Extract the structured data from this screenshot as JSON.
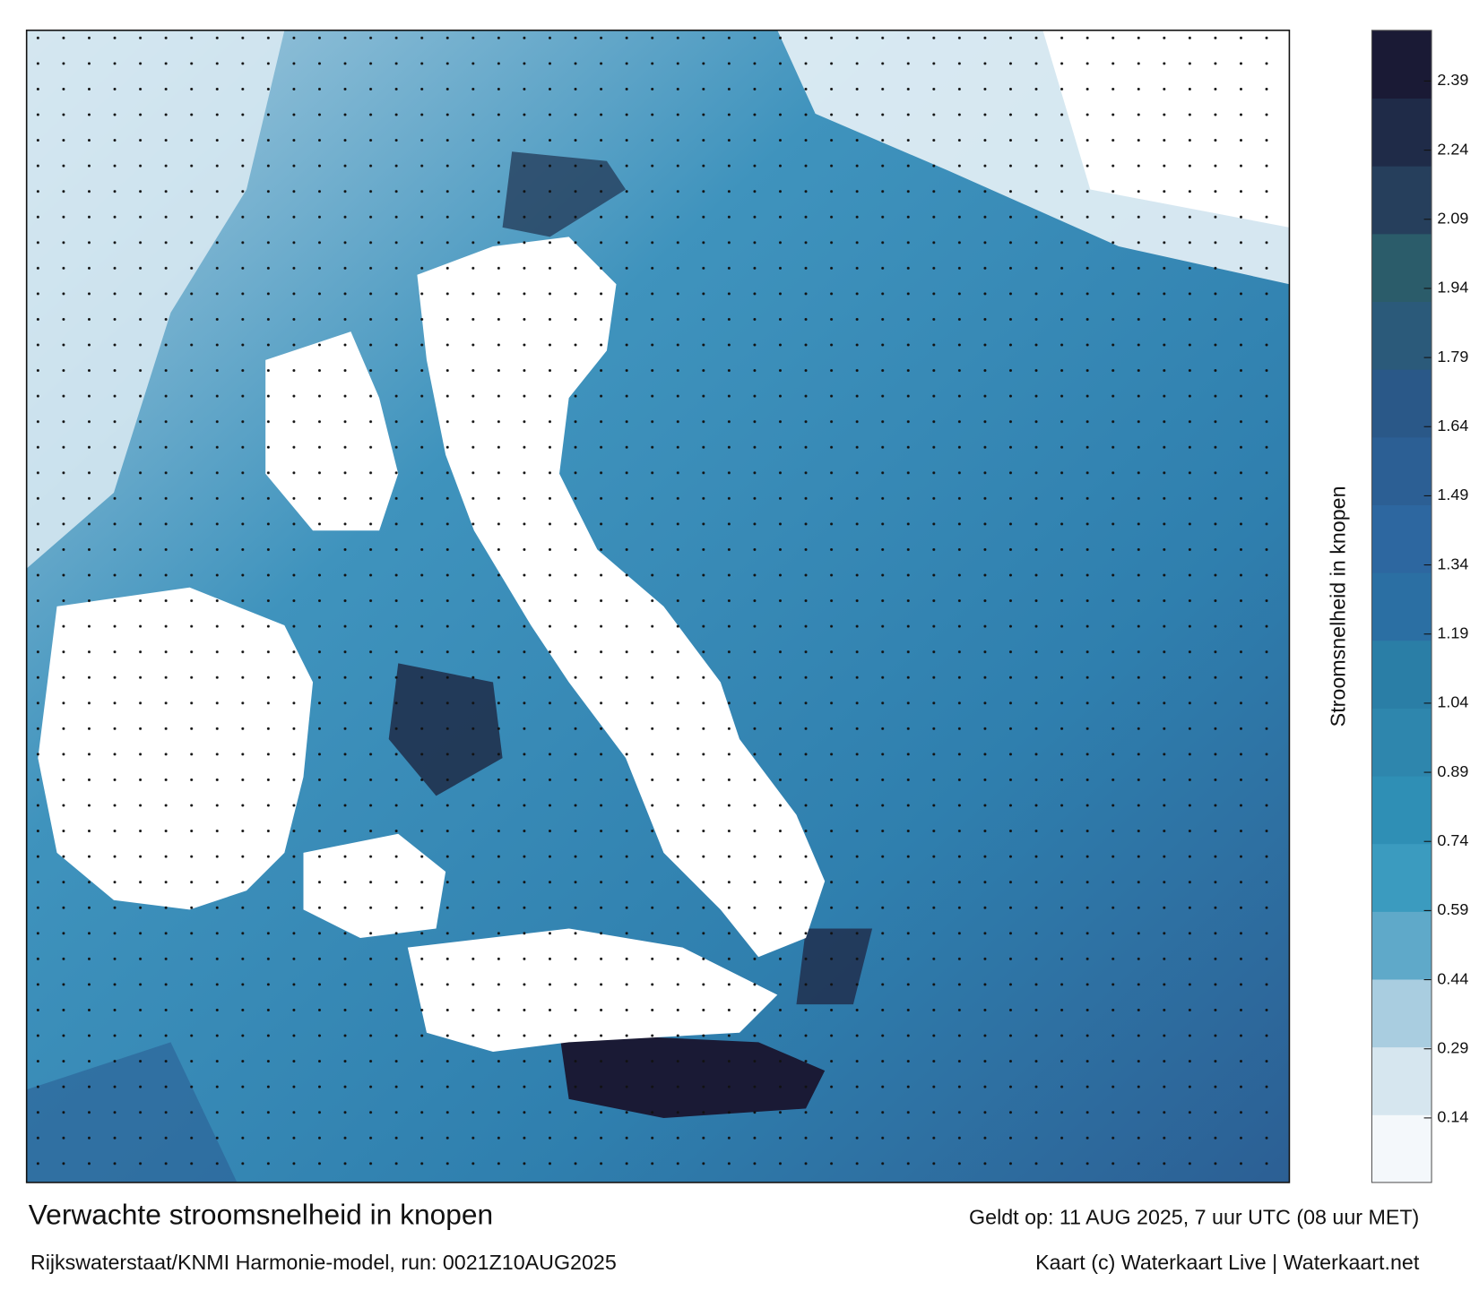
{
  "title": "Verwachte stroomsnelheid in knopen",
  "subtitle": "Rijkswaterstaat/KNMI Harmonie-model, run: 0021Z10AUG2025",
  "valid_time": "Geldt op: 11 AUG 2025, 7 uur UTC (08 uur MET)",
  "credit": "Kaart (c) Waterkaart Live | Waterkaart.net",
  "colorbar": {
    "label": "Stroomsnelheid in knopen",
    "lim": [
      0,
      2.5
    ],
    "ticks": [
      0.14,
      0.29,
      0.44,
      0.59,
      0.74,
      0.89,
      1.04,
      1.19,
      1.34,
      1.49,
      1.64,
      1.79,
      1.94,
      2.09,
      2.24,
      2.39
    ],
    "colors": [
      "#f4f8fb",
      "#d6e6ef",
      "#a9cde0",
      "#5fa9c9",
      "#3b9bbf",
      "#2f8fb5",
      "#2e86ad",
      "#2a7ea6",
      "#2b6fa3",
      "#2d67a0",
      "#2c5f94",
      "#2a5888",
      "#2b5a7a",
      "#2b5c6a",
      "#263f5c",
      "#1f2b48",
      "#1a1a35"
    ]
  }
}
